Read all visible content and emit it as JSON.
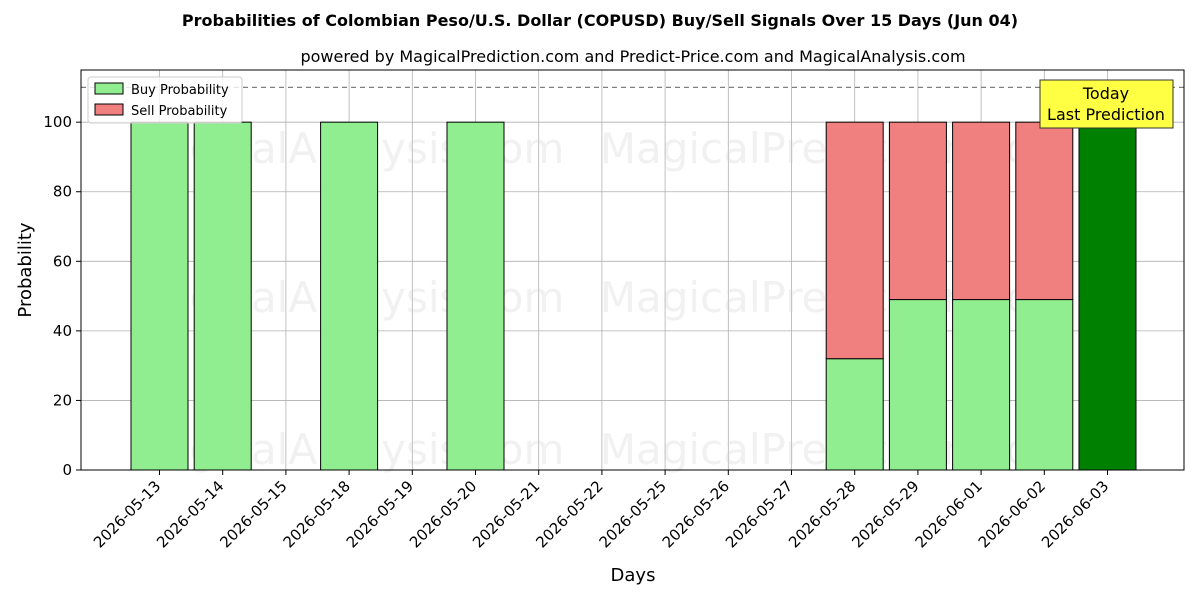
{
  "chart_data": {
    "type": "bar",
    "stacked": true,
    "title": "Probabilities of Colombian Peso/U.S. Dollar (COPUSD) Buy/Sell Signals Over 15 Days (Jun 04)",
    "subtitle": "powered by MagicalPrediction.com and Predict-Price.com and MagicalAnalysis.com",
    "xlabel": "Days",
    "ylabel": "Probability",
    "ylim": [
      0,
      115
    ],
    "yticks": [
      0,
      20,
      40,
      60,
      80,
      100
    ],
    "reference_line": 110,
    "grid": true,
    "legend_position": "top-left",
    "categories": [
      "2026-05-13",
      "2026-05-14",
      "2026-05-15",
      "2026-05-18",
      "2026-05-19",
      "2026-05-20",
      "2026-05-21",
      "2026-05-22",
      "2026-05-25",
      "2026-05-26",
      "2026-05-27",
      "2026-05-28",
      "2026-05-29",
      "2026-06-01",
      "2026-06-02",
      "2026-06-03"
    ],
    "series": [
      {
        "name": "Buy Probability",
        "color": "#90ee90",
        "values": [
          100,
          100,
          0,
          100,
          0,
          100,
          0,
          0,
          0,
          0,
          0,
          32,
          49,
          49,
          49,
          100
        ]
      },
      {
        "name": "Sell Probability",
        "color": "#f08080",
        "values": [
          0,
          0,
          0,
          0,
          0,
          0,
          0,
          0,
          0,
          0,
          0,
          68,
          51,
          51,
          51,
          0
        ]
      }
    ],
    "highlight": {
      "index": 15,
      "color": "#008000"
    },
    "annotation": {
      "line1": "Today",
      "line2": "Last Prediction",
      "color": "#ffff44"
    },
    "watermarks": [
      "MagicalAnalysis.com",
      "MagicalPrediction.com"
    ]
  }
}
